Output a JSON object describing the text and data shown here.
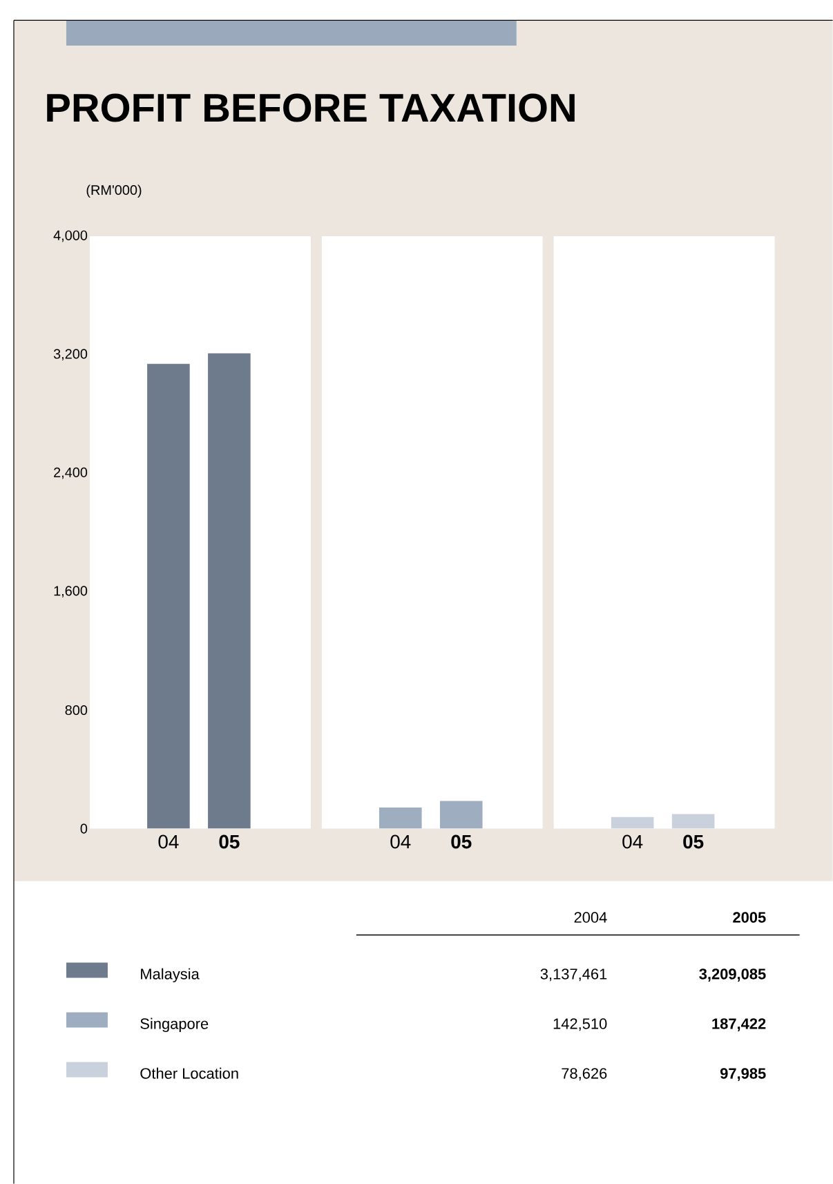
{
  "chart_data": [
    {
      "type": "bar",
      "title": "PROFIT BEFORE TAXATION",
      "ylabel": "(RM'000)",
      "categories": [
        "04",
        "05"
      ],
      "series": [
        {
          "name": "Malaysia",
          "color": "#6d7b8d",
          "values": [
            3137.461,
            3209.085
          ]
        }
      ],
      "ylim": [
        0,
        4000
      ],
      "yticks": [
        0,
        800,
        {
          "value": 1600,
          "label": "1,600"
        },
        {
          "value": 2400,
          "label": "2,400"
        },
        {
          "value": 3200,
          "label": "3,200"
        },
        {
          "value": 4000,
          "label": "4,000"
        }
      ],
      "annotations": [
        "2004",
        "2005",
        "3,137,461",
        "3,209,085"
      ],
      "legend": "bottom"
    },
    {
      "type": "bar",
      "categories": [
        "04",
        "05"
      ],
      "series": [
        {
          "name": "Singapore",
          "color": "#9eadc0",
          "values": [
            142.51,
            187.422
          ]
        }
      ],
      "ylim": [
        0,
        4000
      ],
      "tick_labels": "x",
      "annotations": [
        "142,510",
        "187,422"
      ],
      "legend": "bottom"
    },
    {
      "type": "bar",
      "categories": [
        "04",
        "05"
      ],
      "series": [
        {
          "name": "Other Location",
          "color": "#c9d1dd",
          "values": [
            78.626,
            97.985
          ]
        }
      ],
      "ylim": [
        0,
        4000
      ],
      "tick_labels": "x",
      "annotations": [
        "78,626",
        "97,985"
      ],
      "legend": "bottom"
    }
  ]
}
